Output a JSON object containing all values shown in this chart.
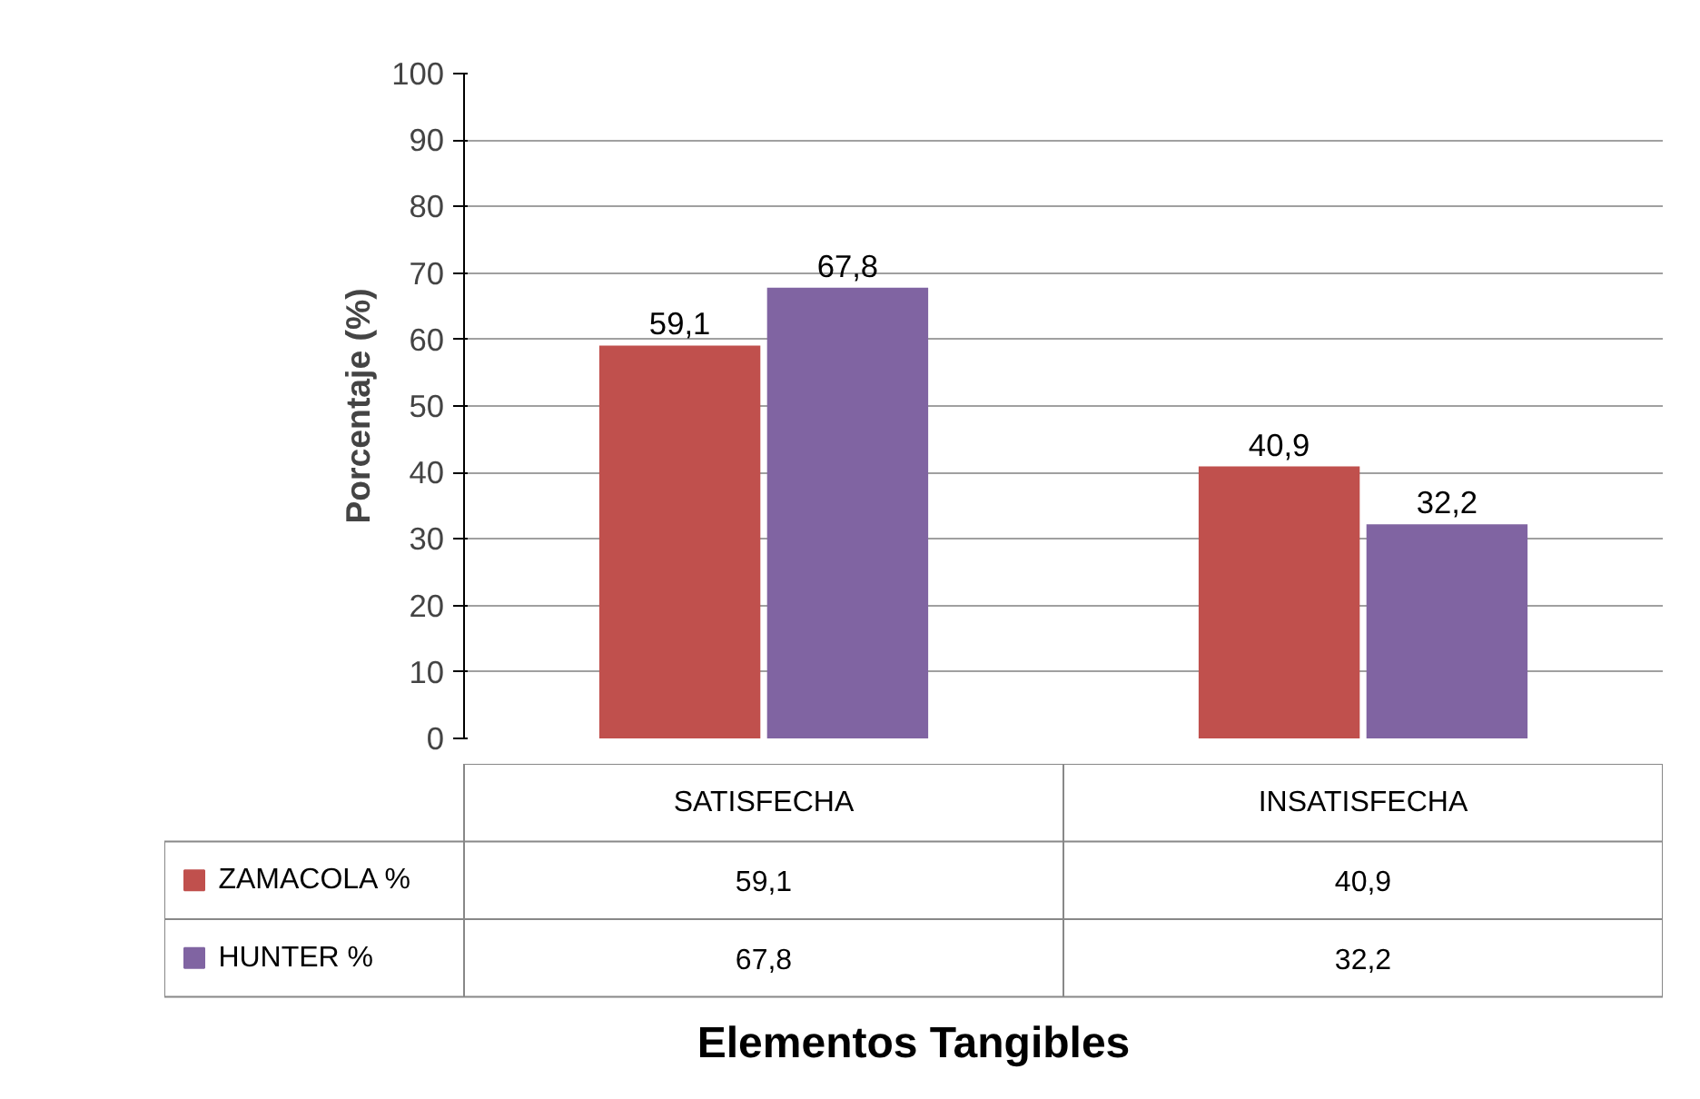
{
  "chart_data": {
    "type": "bar",
    "annotations": [
      "Elementos Tangibles"
    ],
    "ylabel": "Porcentaje (%)",
    "categories": [
      "SATISFECHA",
      "INSATISFECHA"
    ],
    "series": [
      {
        "name": "ZAMACOLA %",
        "color": "#c0504d",
        "values": [
          59.1,
          40.9
        ],
        "value_labels": [
          "59,1",
          "40,9"
        ]
      },
      {
        "name": "HUNTER %",
        "color": "#8064a2",
        "values": [
          67.8,
          32.2
        ],
        "value_labels": [
          "67,8",
          "32,2"
        ]
      }
    ],
    "ylim": [
      0,
      100
    ],
    "yticks": [
      0,
      10,
      20,
      30,
      40,
      50,
      60,
      70,
      80,
      90,
      100
    ],
    "grid": "y",
    "legend": "bottom"
  }
}
